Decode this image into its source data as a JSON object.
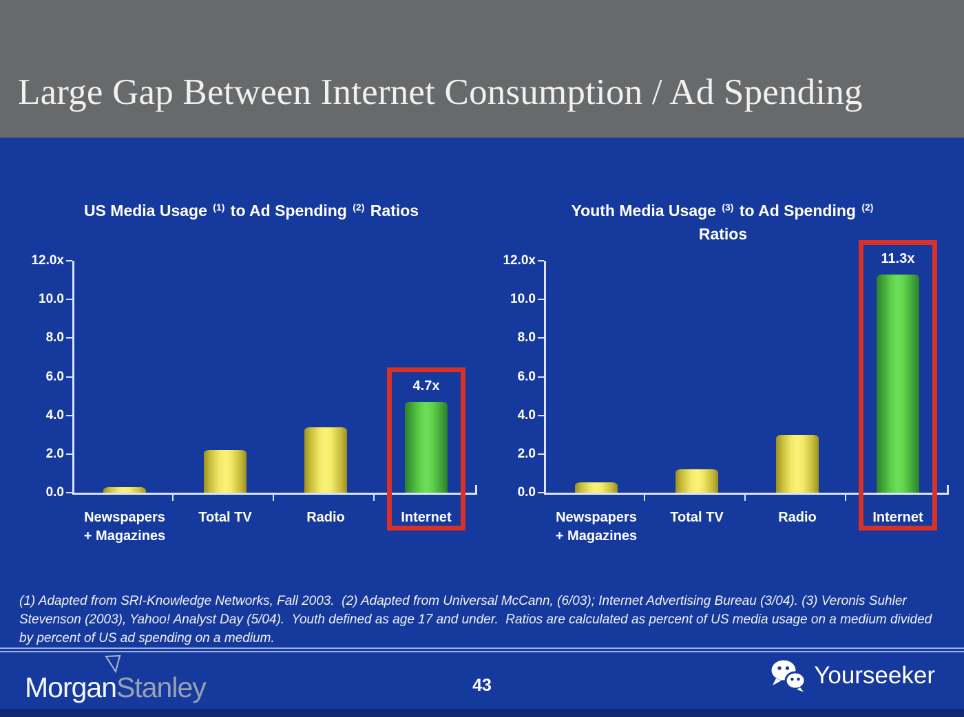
{
  "slide": {
    "title": "Large Gap Between Internet Consumption / Ad Spending"
  },
  "footnote": "(1) Adapted from SRI-Knowledge Networks, Fall 2003.  (2) Adapted from Universal McCann, (6/03); Internet Advertising Bureau (3/04). (3) Veronis Suhler Stevenson (2003), Yahoo! Analyst Day (5/04).  Youth defined as age 17 and under.  Ratios are calculated as percent of US media usage on a medium divided by percent of US ad spending on a medium.",
  "footer": {
    "page_number": "43",
    "brand": "Yourseeker",
    "logo": {
      "part1": "Morgan",
      "part2": "Stanley"
    }
  },
  "colors": {
    "header_gray": "#67696a",
    "body_blue": "#16399d",
    "bottom_strip_blue": "#122a72",
    "axis_white": "#dce4f6",
    "bar_yellow": "#f1e967",
    "bar_green": "#5fd34b",
    "highlight_red": "#d93128",
    "stanley_gray": "#98a1b4"
  },
  "chart_data": [
    {
      "type": "bar",
      "title_parts": [
        {
          "t": "US Media Usage "
        },
        {
          "sup": "(1)"
        },
        {
          "t": " to Ad Spending "
        },
        {
          "sup": "(2)"
        },
        {
          "t": " Ratios"
        }
      ],
      "title_line2": "",
      "categories": [
        [
          "Newspapers",
          "+ Magazines"
        ],
        [
          "Total TV"
        ],
        [
          "Radio"
        ],
        [
          "Internet"
        ]
      ],
      "values": [
        0.3,
        2.2,
        3.4,
        4.7
      ],
      "bar_colors": [
        "yellow",
        "yellow",
        "yellow",
        "green"
      ],
      "ylim": [
        0,
        12
      ],
      "ytick_labels": [
        "12.0x",
        "10.0",
        "8.0",
        "6.0",
        "4.0",
        "2.0",
        "0.0"
      ],
      "annotation": {
        "index": 3,
        "label": "4.7x"
      },
      "highlight_index": 3,
      "legend": "none",
      "grid": "off"
    },
    {
      "type": "bar",
      "title_parts": [
        {
          "t": "Youth Media Usage "
        },
        {
          "sup": "(3)"
        },
        {
          "t": " to Ad Spending "
        },
        {
          "sup": "(2)"
        }
      ],
      "title_line2": "Ratios",
      "categories": [
        [
          "Newspapers",
          "+ Magazines"
        ],
        [
          "Total TV"
        ],
        [
          "Radio"
        ],
        [
          "Internet"
        ]
      ],
      "values": [
        0.55,
        1.2,
        3.0,
        11.3
      ],
      "bar_colors": [
        "yellow",
        "yellow",
        "yellow",
        "green"
      ],
      "ylim": [
        0,
        12
      ],
      "ytick_labels": [
        "12.0x",
        "10.0",
        "8.0",
        "6.0",
        "4.0",
        "2.0",
        "0.0"
      ],
      "annotation": {
        "index": 3,
        "label": "11.3x"
      },
      "highlight_index": 3,
      "legend": "none",
      "grid": "off"
    }
  ]
}
